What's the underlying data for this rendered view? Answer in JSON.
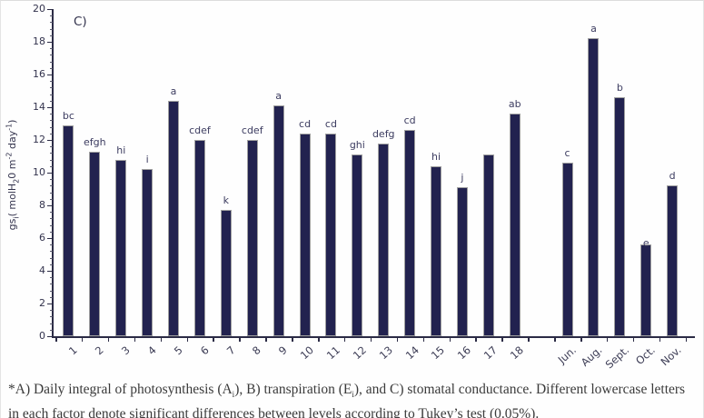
{
  "panel_label": "C)",
  "chart_data": {
    "type": "bar",
    "title": "",
    "ylabel_segments": [
      {
        "t": "gs"
      },
      {
        "t": "i",
        "sub": true
      },
      {
        "t": "( molH"
      },
      {
        "t": "2",
        "sub": true
      },
      {
        "t": "0 m"
      },
      {
        "t": "-2",
        "sup": true
      },
      {
        "t": " day"
      },
      {
        "t": "-1",
        "sup": true
      },
      {
        "t": ")"
      }
    ],
    "ylim": [
      0,
      20
    ],
    "ytick_step": 2,
    "yminor_step": 0.4,
    "grid": false,
    "legend": false,
    "bar_color": "#22224f",
    "categories": [
      "1",
      "2",
      "3",
      "4",
      "5",
      "6",
      "7",
      "8",
      "9",
      "10",
      "11",
      "12",
      "13",
      "14",
      "15",
      "16",
      "17",
      "18",
      "",
      "Jun.",
      "Aug.",
      "Sept.",
      "Oct.",
      "Nov."
    ],
    "values": [
      12.9,
      11.3,
      10.8,
      10.2,
      14.4,
      12.0,
      7.7,
      12.0,
      14.1,
      12.4,
      12.4,
      11.1,
      11.8,
      12.6,
      10.4,
      9.1,
      11.1,
      13.6,
      null,
      10.6,
      18.2,
      14.6,
      5.6,
      9.2
    ],
    "letters": [
      "bc",
      "efgh",
      "hi",
      "i",
      "a",
      "cdef",
      "k",
      "cdef",
      "a",
      "cd",
      "cd",
      "ghi",
      "defg",
      "cd",
      "hi",
      "j",
      "",
      "ab",
      "",
      "c",
      "a",
      "b",
      "e",
      "d"
    ],
    "letter_offsets": {
      "22": 9
    }
  },
  "caption_segments": [
    {
      "t": "*A) Daily integral of photosynthesis (A"
    },
    {
      "t": "i",
      "sub": true
    },
    {
      "t": "), B) transpiration (E"
    },
    {
      "t": "i",
      "sub": true
    },
    {
      "t": "), and C) stomatal conductance. Different lowercase letters in each factor denote significant differences between levels according to Tukey’s test (0.05%)."
    }
  ]
}
